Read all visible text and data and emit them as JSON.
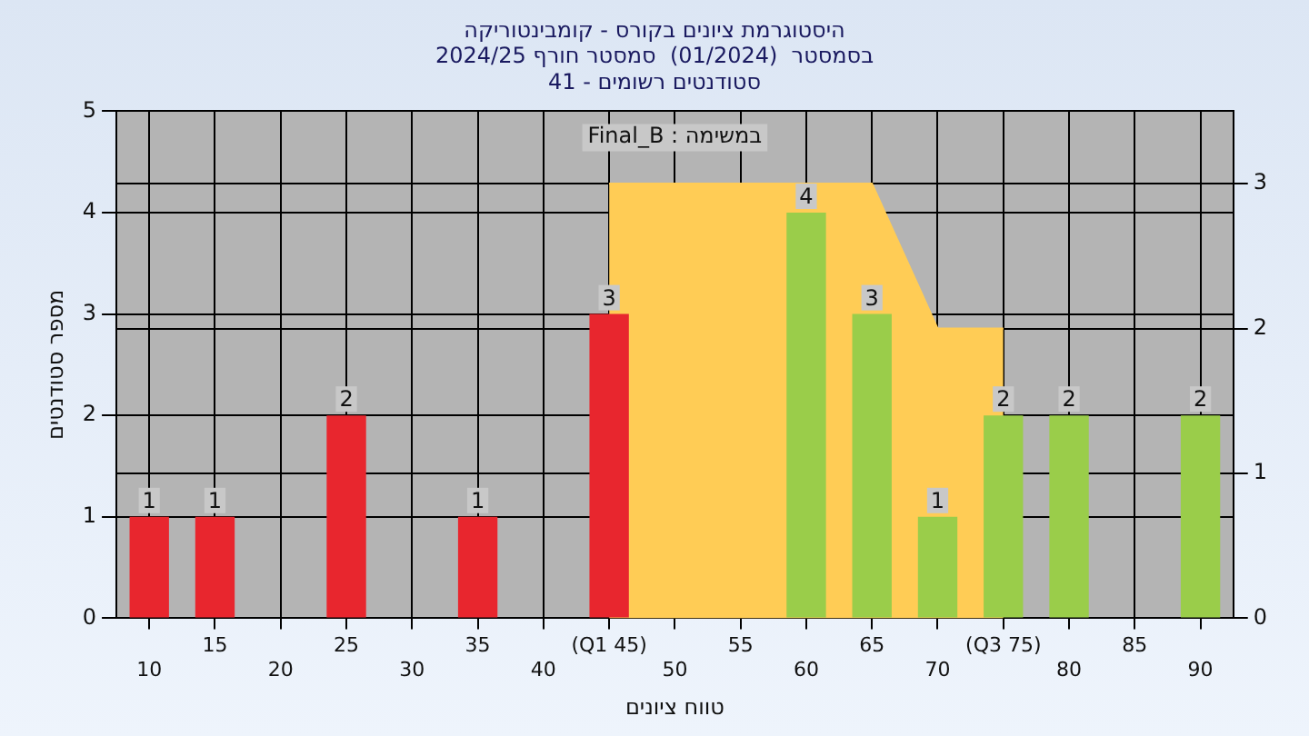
{
  "chart_data": {
    "type": "bar",
    "title": "היסטוגרמת ציונים בקורס - קומבינטוריקה\nבסמסטר  (01/2024)  סמסטר חורף 2024/25\nסטודנטים רשומים - 41",
    "xlabel": "טווח ציונים",
    "ylabel": "מספר סטודנטים",
    "annotations": [
      "Final_B : במשימה"
    ],
    "categories": [
      "10",
      "15",
      "20",
      "25",
      "30",
      "35",
      "40",
      "(Q1 45)",
      "50",
      "55",
      "60",
      "65",
      "70",
      "(Q3 75)",
      "80",
      "85",
      "90"
    ],
    "series": [
      {
        "type": "area",
        "axis": "y2",
        "color": "#ffcc55",
        "values": [
          null,
          null,
          null,
          null,
          null,
          null,
          null,
          3,
          3,
          3,
          3,
          3,
          2,
          2,
          null,
          null,
          null
        ]
      },
      {
        "colors": [
          "#e8262e",
          "#e8262e",
          "#e8262e",
          "#e8262e",
          "#e8262e",
          "#e8262e",
          "#e8262e",
          "#e8262e",
          "#9acd4a",
          "#9acd4a",
          "#9acd4a",
          "#9acd4a",
          "#9acd4a",
          "#9acd4a",
          "#9acd4a",
          "#9acd4a",
          "#9acd4a"
        ],
        "values": [
          1,
          1,
          0,
          2,
          0,
          1,
          0,
          3,
          0,
          0,
          4,
          3,
          1,
          2,
          2,
          0,
          2
        ],
        "value_labels": [
          "1",
          "1",
          null,
          "2",
          null,
          "1",
          null,
          "3",
          null,
          null,
          "4",
          "3",
          "1",
          "2",
          "2",
          null,
          "2"
        ]
      }
    ],
    "ylim": [
      0,
      5
    ],
    "yticks": [
      0,
      1,
      2,
      3,
      4,
      5
    ],
    "y2lim": [
      0,
      3.5
    ],
    "y2ticks": [
      0,
      1,
      2,
      3
    ],
    "grid": true,
    "legend": false
  }
}
